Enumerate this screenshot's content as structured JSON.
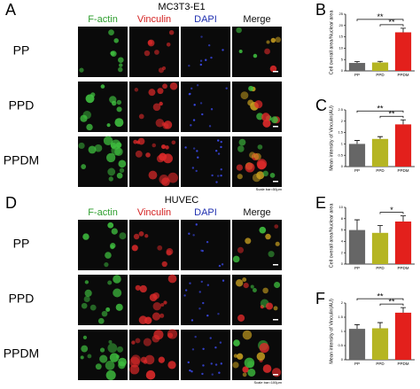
{
  "figure": {
    "panels": [
      {
        "letter": "A",
        "title": "MC3T3-E1",
        "columns": [
          "F-actin",
          "Vinculin",
          "DAPI",
          "Merge"
        ],
        "column_colors": [
          "#2e9e2e",
          "#d42020",
          "#2030b0",
          "#111111"
        ],
        "rows": [
          "PP",
          "PPD",
          "PPDM"
        ],
        "scale_bar": "Scale bar=50μm"
      },
      {
        "letter": "D",
        "title": "HUVEC",
        "columns": [
          "F-actin",
          "Vinculin",
          "DAPI",
          "Merge"
        ],
        "column_colors": [
          "#2e9e2e",
          "#d42020",
          "#2030b0",
          "#111111"
        ],
        "rows": [
          "PP",
          "PPD",
          "PPDM"
        ],
        "scale_bar": "Scale bar=100μm"
      }
    ]
  },
  "chart_data": [
    {
      "type": "bar",
      "panel": "B",
      "ylabel": "Cell overall area/Nuclear area",
      "categories": [
        "PP",
        "PPD",
        "PPDM"
      ],
      "values": [
        3.5,
        3.7,
        17
      ],
      "errors": [
        0.6,
        0.5,
        1.8
      ],
      "colors": [
        "#666666",
        "#b5b522",
        "#e3201c"
      ],
      "ylim": [
        0,
        25
      ],
      "yticks": [
        0,
        5,
        10,
        15,
        20,
        25
      ],
      "significance": [
        {
          "pair": [
            "PP",
            "PPDM"
          ],
          "label": "**"
        },
        {
          "pair": [
            "PPD",
            "PPDM"
          ],
          "label": "**"
        }
      ]
    },
    {
      "type": "bar",
      "panel": "C",
      "ylabel": "Mean intensity of Vinculin(AU)",
      "categories": [
        "PP",
        "PPD",
        "PPDM"
      ],
      "values": [
        1.0,
        1.22,
        1.86
      ],
      "errors": [
        0.15,
        0.1,
        0.2
      ],
      "colors": [
        "#666666",
        "#b5b522",
        "#e3201c"
      ],
      "ylim": [
        0,
        2.5
      ],
      "yticks": [
        0,
        0.5,
        1,
        1.5,
        2,
        2.5
      ],
      "significance": [
        {
          "pair": [
            "PP",
            "PPDM"
          ],
          "label": "**"
        },
        {
          "pair": [
            "PPD",
            "PPDM"
          ],
          "label": "**"
        }
      ]
    },
    {
      "type": "bar",
      "panel": "E",
      "ylabel": "Cell overall area/Nuclear area",
      "categories": [
        "PP",
        "PPD",
        "PPDM"
      ],
      "values": [
        6,
        5.5,
        7.5
      ],
      "errors": [
        1.8,
        1.3,
        1.0
      ],
      "colors": [
        "#666666",
        "#b5b522",
        "#e3201c"
      ],
      "ylim": [
        0,
        10
      ],
      "yticks": [
        0,
        2,
        4,
        6,
        8,
        10
      ],
      "significance": [
        {
          "pair": [
            "PPD",
            "PPDM"
          ],
          "label": "*"
        }
      ]
    },
    {
      "type": "bar",
      "panel": "F",
      "ylabel": "Mean intensity of Vinculin(AU)",
      "categories": [
        "PP",
        "PPD",
        "PPDM"
      ],
      "values": [
        1.09,
        1.11,
        1.66
      ],
      "errors": [
        0.15,
        0.2,
        0.18
      ],
      "colors": [
        "#666666",
        "#b5b522",
        "#e3201c"
      ],
      "ylim": [
        0,
        2
      ],
      "yticks": [
        0,
        0.5,
        1,
        1.5,
        2
      ],
      "significance": [
        {
          "pair": [
            "PP",
            "PPDM"
          ],
          "label": "**"
        },
        {
          "pair": [
            "PPD",
            "PPDM"
          ],
          "label": "**"
        }
      ]
    }
  ]
}
